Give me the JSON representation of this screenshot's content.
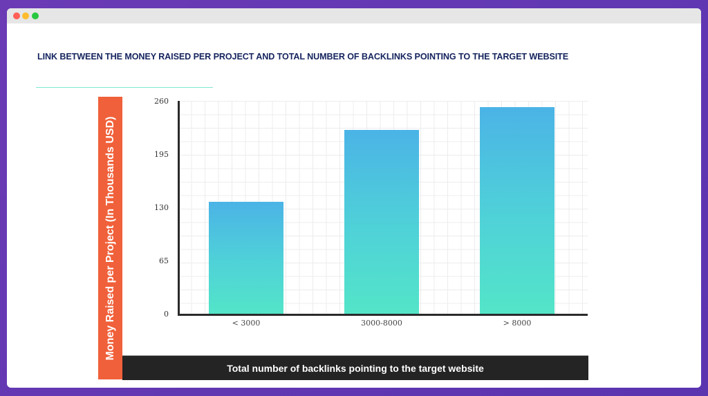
{
  "window": {
    "controls": [
      "close",
      "minimize",
      "maximize"
    ]
  },
  "heading": "LINK BETWEEN THE MONEY RAISED PER PROJECT AND TOTAL NUMBER OF BACKLINKS POINTING TO THE TARGET WEBSITE",
  "colors": {
    "background": "#5b34b0",
    "heading": "#15245e",
    "accent_rule": "#7de8cf",
    "ylabel_band": "#f0603a",
    "xlabel_band": "#242424",
    "bar_top": "#4bb3e6",
    "bar_bottom": "#53e5c8"
  },
  "chart_data": {
    "type": "bar",
    "title": "LINK BETWEEN THE MONEY RAISED PER PROJECT AND TOTAL NUMBER OF BACKLINKS POINTING TO THE TARGET WEBSITE",
    "categories": [
      "< 3000",
      "3000-8000",
      "> 8000"
    ],
    "values": [
      138,
      225,
      253
    ],
    "xlabel": "Total number of backlinks pointing to the target website",
    "ylabel": "Money Raised per Project (In Thousands USD)",
    "ylim": [
      0,
      260
    ],
    "yticks": [
      "0",
      "65",
      "130",
      "195",
      "260"
    ],
    "grid": true,
    "legend": null
  }
}
